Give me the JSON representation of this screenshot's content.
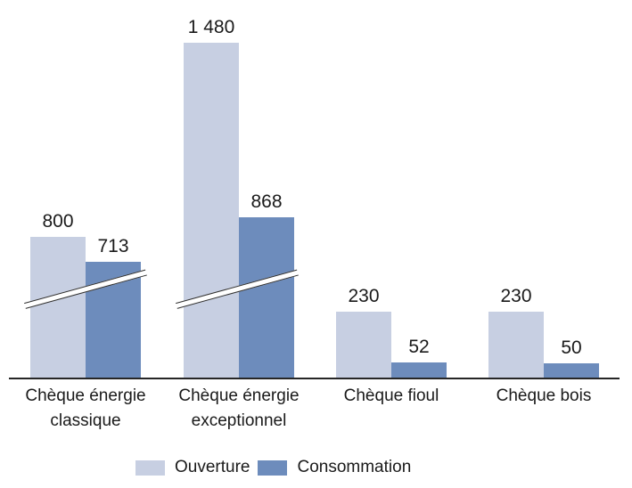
{
  "chart_data": {
    "type": "bar",
    "categories": [
      "Chèque énergie classique",
      "Chèque énergie exceptionnel",
      "Chèque fioul",
      "Chèque bois"
    ],
    "series": [
      {
        "name": "Ouverture",
        "color": "#C7CFE2",
        "values": [
          800,
          1480,
          230,
          230
        ],
        "value_labels": [
          "800",
          "1 480",
          "230",
          "230"
        ]
      },
      {
        "name": "Consommation",
        "color": "#6D8CBC",
        "values": [
          713,
          868,
          52,
          50
        ],
        "value_labels": [
          "713",
          "868",
          "52",
          "50"
        ]
      }
    ],
    "title": "",
    "xlabel": "",
    "ylabel": "",
    "grid": false,
    "y_axis_visible": false,
    "value_labels_shown": true,
    "legend_position": "bottom",
    "axis_break": {
      "present": true,
      "on_categories": [
        "Chèque énergie classique",
        "Chèque énergie exceptionnel"
      ],
      "note": "diagonal double-slash break marks across the bars of the first two groups"
    }
  },
  "colors": {
    "background": "#FFFFFF",
    "text": "#1A1A1A",
    "axis_line": "#262626",
    "break_line": "#2E2E2E"
  }
}
